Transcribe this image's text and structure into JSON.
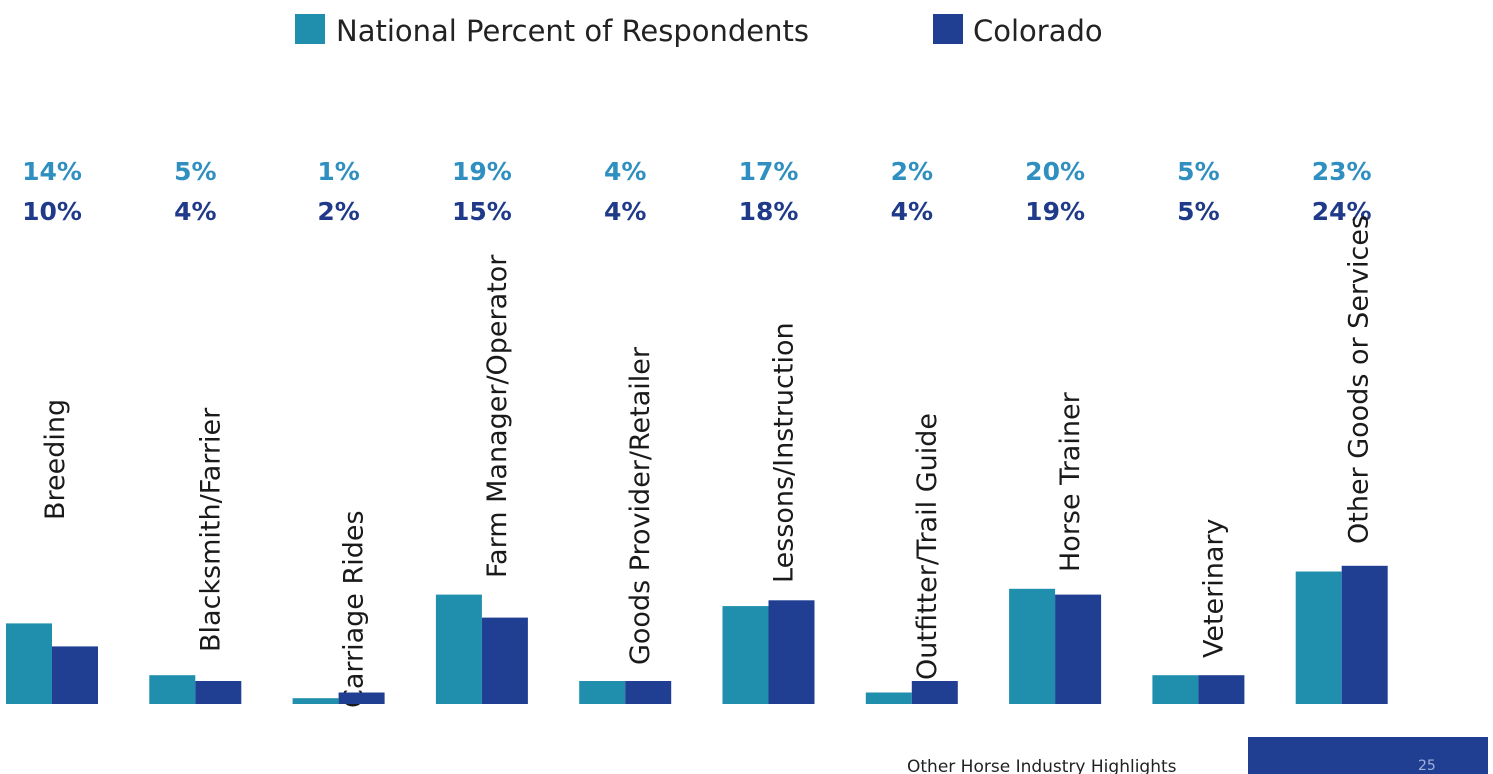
{
  "legend": {
    "national_label": "National Percent of Respondents",
    "colorado_label": "Colorado"
  },
  "colors": {
    "national": "#1f8fad",
    "colorado": "#203f93",
    "national_label": "#2e8fc0",
    "colorado_label": "#203a8a"
  },
  "footer": {
    "caption": "Other Horse Industry Highlights",
    "page_number": "25"
  },
  "chart_data": {
    "type": "bar",
    "title": "",
    "xlabel": "",
    "ylabel": "",
    "ylim": [
      0,
      28
    ],
    "grid": false,
    "legend_position": "top",
    "categories": [
      "Breeding",
      "Blacksmith/Farrier",
      "Carriage Rides",
      "Farm Manager/Operator",
      "Goods Provider/Retailer",
      "Lessons/Instruction",
      "Outfitter/Trail Guide",
      "Horse Trainer",
      "Veterinary",
      "Other Goods or Services"
    ],
    "series": [
      {
        "name": "National Percent of Respondents",
        "values": [
          14,
          5,
          1,
          19,
          4,
          17,
          2,
          20,
          5,
          23
        ],
        "labels": [
          "14%",
          "5%",
          "1%",
          "19%",
          "4%",
          "17%",
          "2%",
          "20%",
          "5%",
          "23%"
        ]
      },
      {
        "name": "Colorado",
        "values": [
          10,
          4,
          2,
          15,
          4,
          18,
          4,
          19,
          5,
          24
        ],
        "labels": [
          "10%",
          "4%",
          "2%",
          "15%",
          "4%",
          "18%",
          "4%",
          "19%",
          "5%",
          "24%"
        ]
      }
    ]
  }
}
